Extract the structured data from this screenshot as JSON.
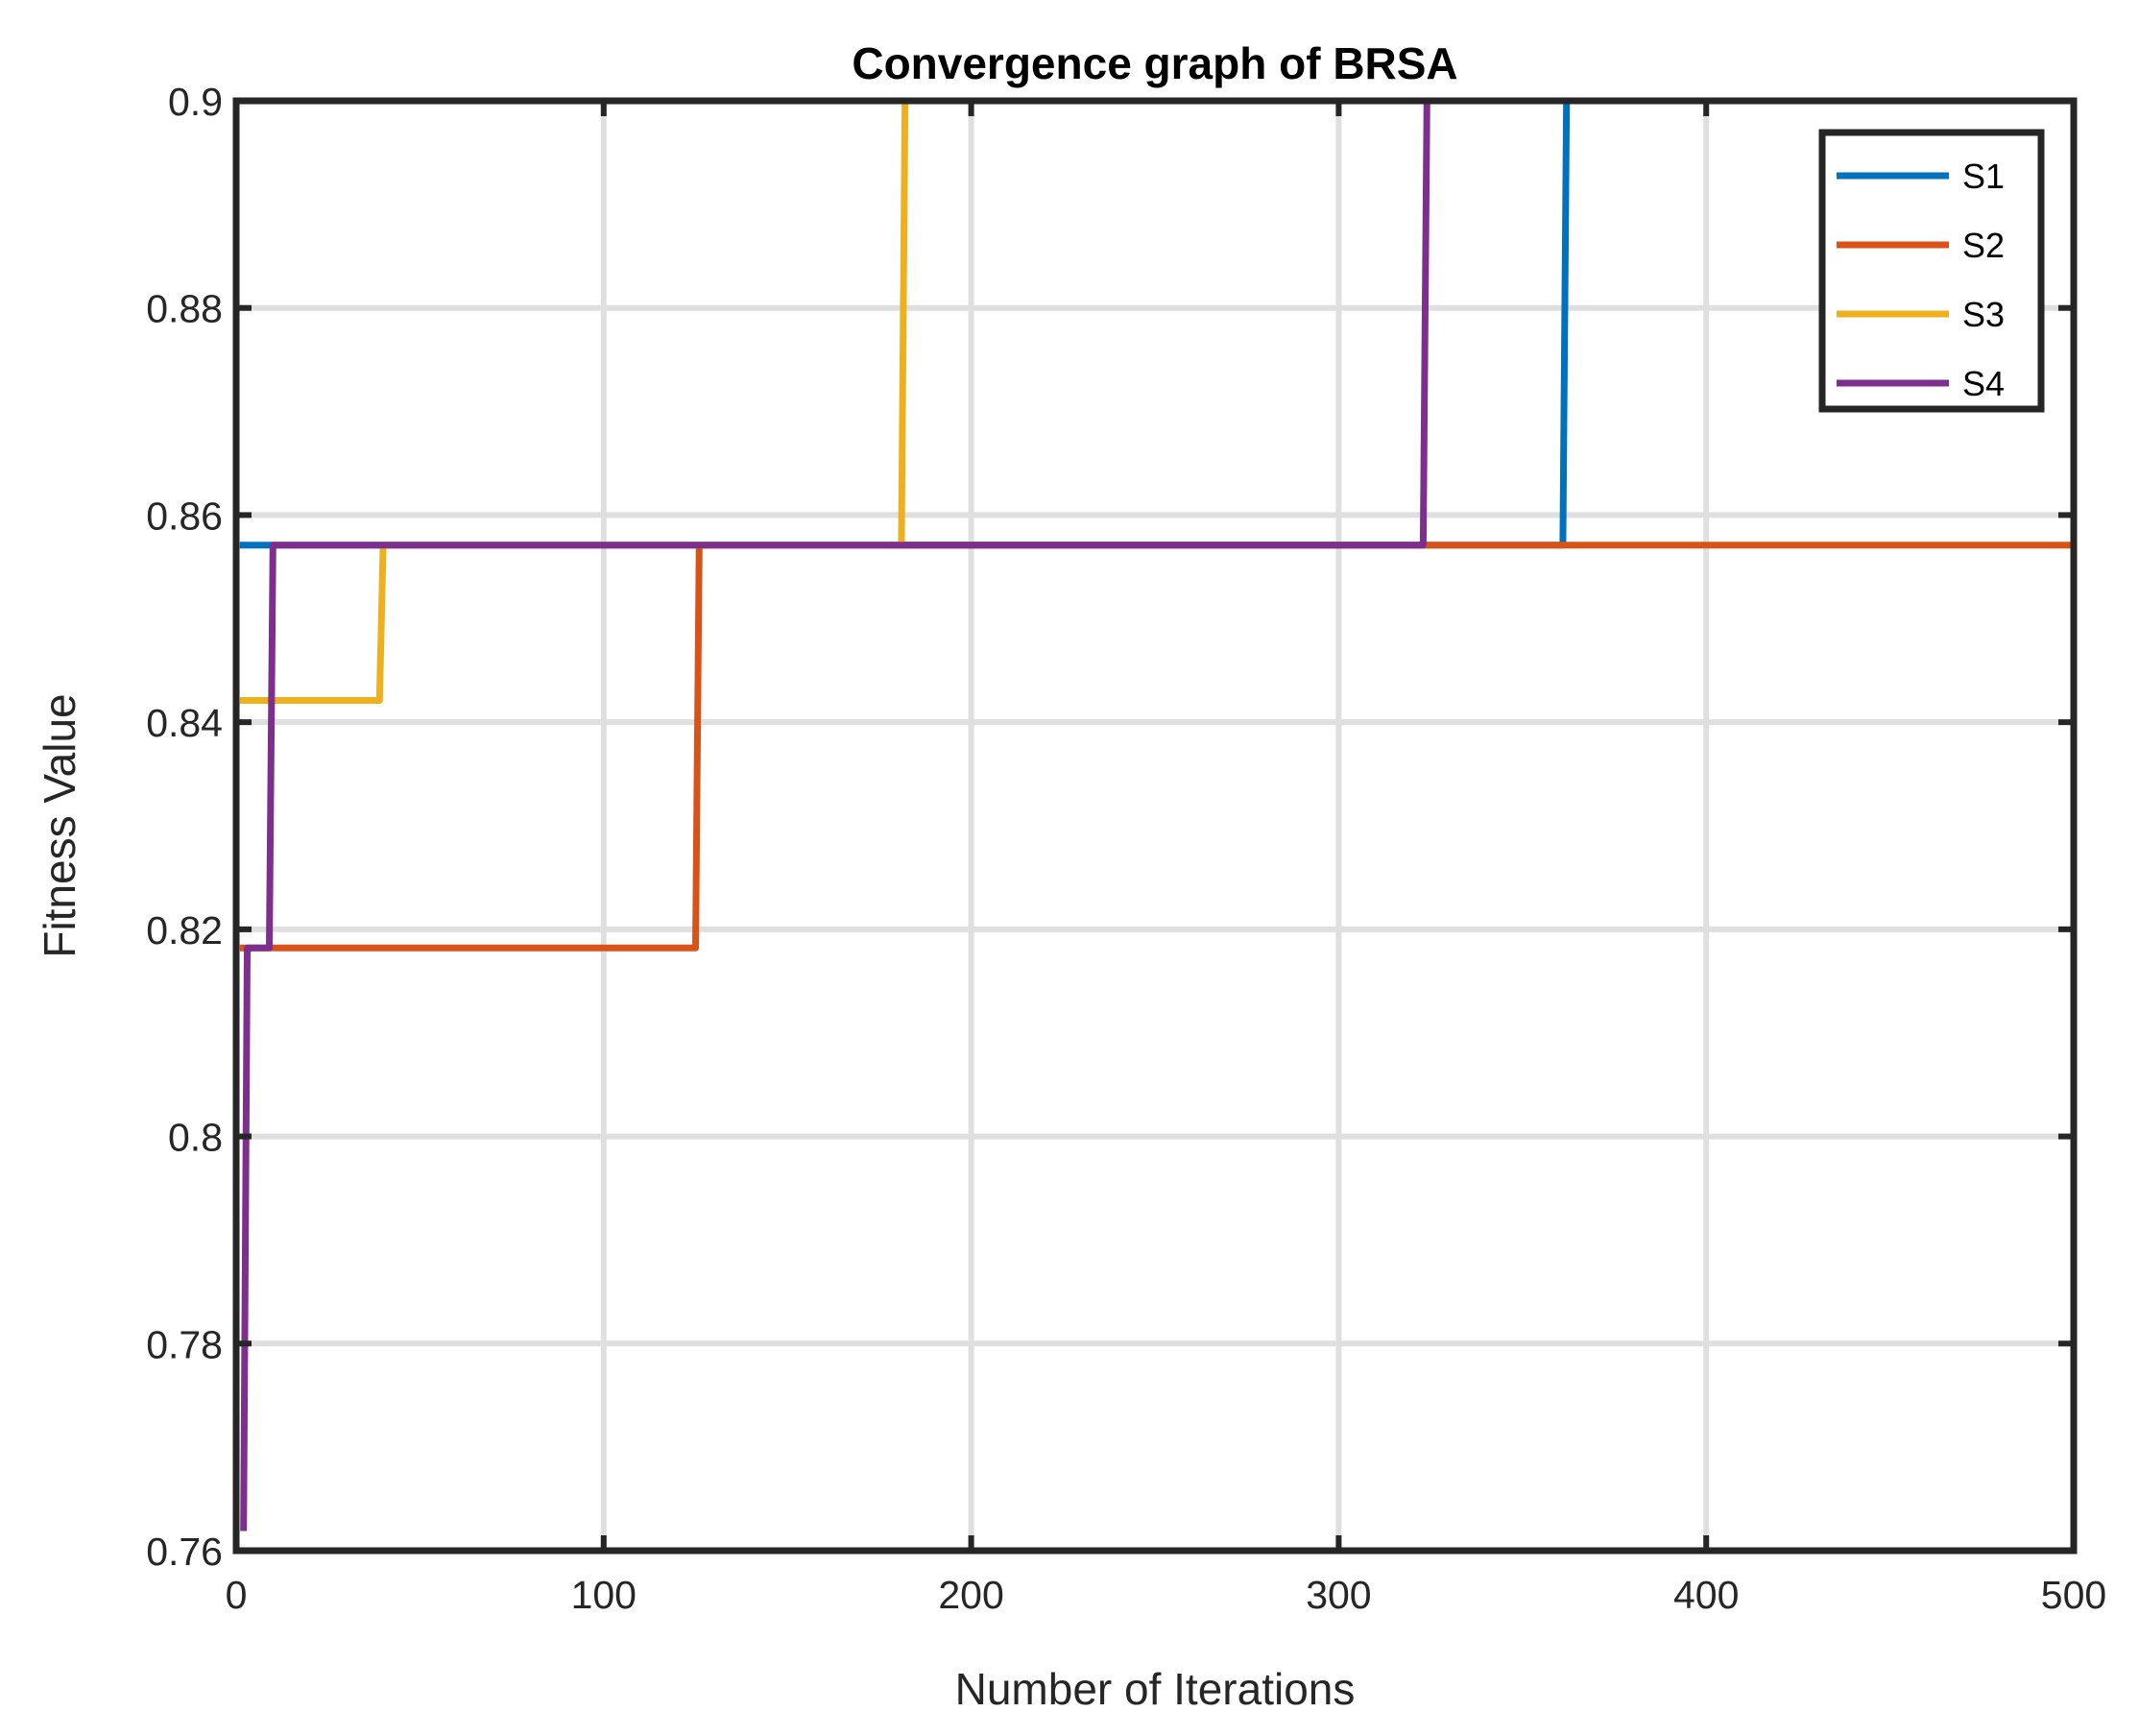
{
  "chart_data": {
    "type": "line",
    "title": "Convergence graph of BRSA",
    "xlabel": "Number of Iterations",
    "ylabel": "Fitness Value",
    "xlim": [
      0,
      500
    ],
    "ylim": [
      0.76,
      0.9
    ],
    "xticks": [
      0,
      100,
      200,
      300,
      400,
      500
    ],
    "yticks": [
      0.76,
      0.78,
      0.8,
      0.82,
      0.84,
      0.86,
      0.88,
      0.9
    ],
    "xtick_labels": [
      "0",
      "100",
      "200",
      "300",
      "400",
      "500"
    ],
    "ytick_labels": [
      "0.76",
      "0.78",
      "0.8",
      "0.82",
      "0.84",
      "0.86",
      "0.88",
      "0.9"
    ],
    "grid": true,
    "legend_position": "top-right",
    "series": [
      {
        "name": "S1",
        "color": "#0072BD",
        "points": [
          [
            1,
            0.8571
          ],
          [
            361,
            0.8571
          ],
          [
            362,
            0.9
          ],
          [
            500,
            0.9
          ]
        ]
      },
      {
        "name": "S2",
        "color": "#D95319",
        "points": [
          [
            1,
            0.8182
          ],
          [
            125,
            0.8182
          ],
          [
            126,
            0.8571
          ],
          [
            500,
            0.8571
          ]
        ]
      },
      {
        "name": "S3",
        "color": "#EDB120",
        "points": [
          [
            1,
            0.8421
          ],
          [
            39,
            0.8421
          ],
          [
            40,
            0.8571
          ],
          [
            181,
            0.8571
          ],
          [
            182,
            0.9
          ],
          [
            500,
            0.9
          ]
        ]
      },
      {
        "name": "S4",
        "color": "#7E2F8E",
        "points": [
          [
            2,
            0.7619
          ],
          [
            3,
            0.8182
          ],
          [
            9,
            0.8182
          ],
          [
            10,
            0.8571
          ],
          [
            323,
            0.8571
          ],
          [
            324,
            0.9
          ],
          [
            500,
            0.9
          ]
        ]
      }
    ]
  }
}
